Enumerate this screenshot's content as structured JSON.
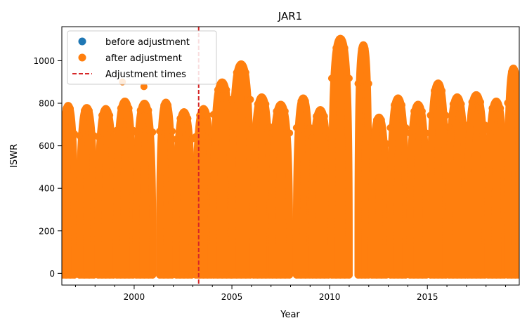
{
  "chart_data": {
    "type": "scatter",
    "title": "JAR1",
    "xlabel": "Year",
    "ylabel": "ISWR",
    "xlim": [
      1996.3,
      2019.7
    ],
    "ylim": [
      -55,
      1160
    ],
    "x_ticks": [
      2000,
      2005,
      2010,
      2015
    ],
    "x_tick_labels": [
      "2000",
      "2005",
      "2010",
      "2015"
    ],
    "x_minor_ticks": [
      1997,
      1998,
      1999,
      2001,
      2002,
      2003,
      2004,
      2006,
      2007,
      2008,
      2009,
      2011,
      2012,
      2013,
      2014,
      2016,
      2017,
      2018,
      2019
    ],
    "y_ticks": [
      0,
      200,
      400,
      600,
      800,
      1000
    ],
    "y_tick_labels": [
      "0",
      "200",
      "400",
      "600",
      "800",
      "1000"
    ],
    "grid": false,
    "legend_position": "top-left",
    "series": [
      {
        "name": "before adjustment",
        "kind": "marker",
        "color": "#1f77b4",
        "note": "hidden behind after-adjustment points"
      },
      {
        "name": "after adjustment",
        "kind": "marker",
        "color": "#ff7f0e",
        "seasons": [
          {
            "start": 1996.3,
            "end": 1996.95,
            "peak": 790,
            "outliers": []
          },
          {
            "start": 1997.2,
            "end": 1997.95,
            "peak": 780,
            "outliers": []
          },
          {
            "start": 1998.15,
            "end": 1998.95,
            "peak": 775,
            "outliers": []
          },
          {
            "start": 1999.1,
            "end": 1999.95,
            "peak": 810,
            "outliers": [
              {
                "x": 1999.4,
                "y": 900
              }
            ]
          },
          {
            "start": 2000.1,
            "end": 2000.95,
            "peak": 800,
            "outliers": [
              {
                "x": 2000.5,
                "y": 878
              }
            ]
          },
          {
            "start": 2001.3,
            "end": 2001.95,
            "peak": 805,
            "outliers": []
          },
          {
            "start": 2002.15,
            "end": 2002.95,
            "peak": 760,
            "outliers": []
          },
          {
            "start": 2003.15,
            "end": 2003.95,
            "peak": 775,
            "outliers": []
          },
          {
            "start": 2004.05,
            "end": 2004.95,
            "peak": 900,
            "outliers": []
          },
          {
            "start": 2005.0,
            "end": 2005.95,
            "peak": 985,
            "outliers": []
          },
          {
            "start": 2006.1,
            "end": 2006.95,
            "peak": 830,
            "outliers": []
          },
          {
            "start": 2007.05,
            "end": 2007.95,
            "peak": 795,
            "outliers": []
          },
          {
            "start": 2008.3,
            "end": 2009.0,
            "peak": 825,
            "outliers": []
          },
          {
            "start": 2009.1,
            "end": 2009.95,
            "peak": 770,
            "outliers": []
          },
          {
            "start": 2010.1,
            "end": 2011.0,
            "peak": 1105,
            "outliers": []
          },
          {
            "start": 2011.45,
            "end": 2012.0,
            "peak": 1075,
            "outliers": []
          },
          {
            "start": 2012.15,
            "end": 2012.9,
            "peak": 735,
            "outliers": []
          },
          {
            "start": 2013.1,
            "end": 2013.9,
            "peak": 825,
            "outliers": []
          },
          {
            "start": 2014.1,
            "end": 2014.95,
            "peak": 795,
            "outliers": []
          },
          {
            "start": 2015.15,
            "end": 2015.95,
            "peak": 895,
            "outliers": []
          },
          {
            "start": 2016.1,
            "end": 2016.95,
            "peak": 830,
            "outliers": []
          },
          {
            "start": 2017.05,
            "end": 2017.95,
            "peak": 840,
            "outliers": []
          },
          {
            "start": 2018.1,
            "end": 2018.95,
            "peak": 810,
            "outliers": []
          },
          {
            "start": 2019.1,
            "end": 2019.7,
            "peak": 965,
            "outliers": []
          }
        ]
      },
      {
        "name": "Adjustment times",
        "kind": "vline",
        "color": "#d62728",
        "linestyle": "dashed",
        "x": 2003.3
      }
    ]
  }
}
